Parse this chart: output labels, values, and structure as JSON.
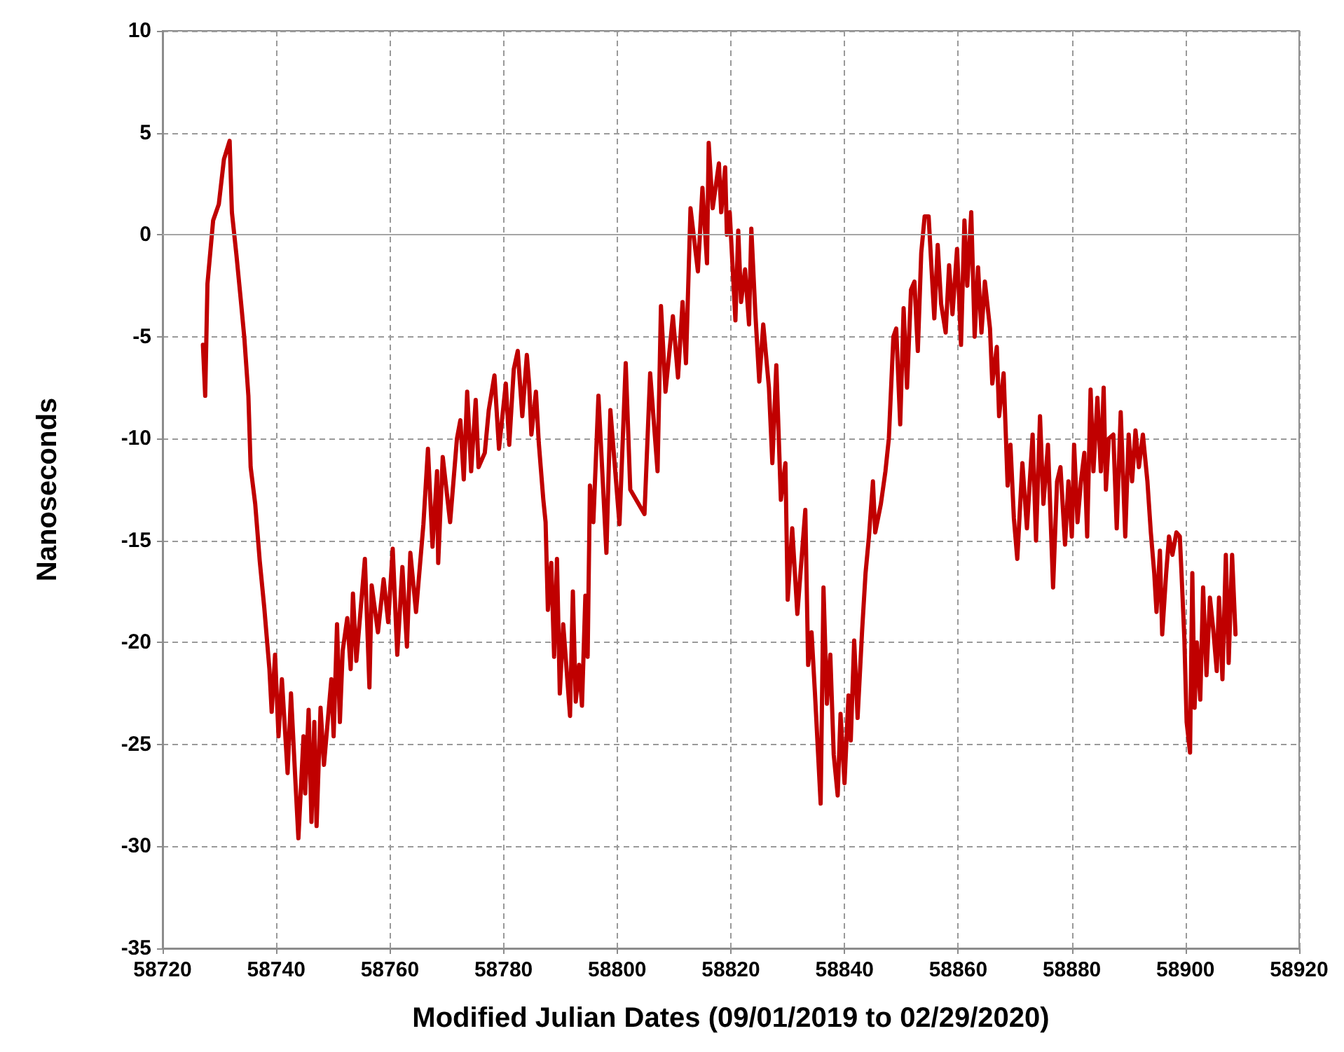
{
  "chart_data": {
    "type": "line",
    "xlabel": "Modified Julian Dates (09/01/2019 to 02/29/2020)",
    "ylabel": "Nanoseconds",
    "xlim": [
      58720,
      58920
    ],
    "xticks": [
      58720,
      58740,
      58760,
      58780,
      58800,
      58820,
      58840,
      58860,
      58880,
      58900,
      58920
    ],
    "ylim": [
      -35,
      10
    ],
    "yticks": [
      -35,
      -30,
      -25,
      -20,
      -15,
      -10,
      -5,
      0,
      5,
      10
    ],
    "grid": true,
    "ref_lines": [
      {
        "axis": "y",
        "value": 0,
        "color": "#a6a6a6",
        "line_style": "solid"
      }
    ],
    "series": [
      {
        "color": "#c00000",
        "x": [
          58727.1,
          58727.5,
          58727.9,
          58728.9,
          58729.9,
          58730.8,
          58731.8,
          58732.2,
          58733.0,
          58733.8,
          58734.4,
          58735.1,
          58735.5,
          58736.3,
          58737.1,
          58737.9,
          58738.8,
          58739.2,
          58739.8,
          58740.4,
          58741.0,
          58742.0,
          58742.6,
          58743.3,
          58743.9,
          58744.8,
          58745.1,
          58745.7,
          58746.2,
          58746.7,
          58747.1,
          58747.8,
          58748.4,
          58749.7,
          58750.1,
          58750.7,
          58751.2,
          58751.7,
          58752.5,
          58753.1,
          58753.5,
          58754.1,
          58755.6,
          58756.4,
          58756.8,
          58757.9,
          58758.9,
          58759.7,
          58760.5,
          58761.3,
          58762.2,
          58763.0,
          58763.6,
          58764.6,
          58765.9,
          58766.7,
          58767.5,
          58768.3,
          58768.5,
          58769.3,
          58770.6,
          58771.8,
          58772.4,
          58773.0,
          58773.6,
          58774.3,
          58775.1,
          58775.6,
          58776.7,
          58777.4,
          58778.4,
          58779.2,
          58780.4,
          58781.0,
          58781.8,
          58782.5,
          58783.3,
          58784.1,
          58784.5,
          58784.9,
          58785.7,
          58786.2,
          58787.0,
          58787.4,
          58787.8,
          58788.4,
          58788.9,
          58789.4,
          58789.9,
          58790.5,
          58791.7,
          58792.2,
          58792.7,
          58793.3,
          58793.8,
          58794.4,
          58794.8,
          58795.2,
          58795.8,
          58796.7,
          58798.1,
          58798.8,
          58800.4,
          58801.5,
          58802.3,
          58804.8,
          58805.8,
          58807.1,
          58807.7,
          58808.5,
          58809.8,
          58810.7,
          58811.5,
          58812.1,
          58812.9,
          58814.2,
          58815.0,
          58815.8,
          58816.1,
          58816.8,
          58817.9,
          58818.3,
          58819.0,
          58819.3,
          58819.8,
          58820.8,
          58821.3,
          58821.8,
          58822.5,
          58823.2,
          58823.6,
          58824.3,
          58825.0,
          58825.7,
          58826.7,
          58827.3,
          58828.0,
          58828.8,
          58829.6,
          58830.0,
          58830.8,
          58831.7,
          58833.1,
          58833.6,
          58834.2,
          58834.8,
          58835.8,
          58836.3,
          58836.9,
          58837.5,
          58838.1,
          58838.8,
          58839.3,
          58840.0,
          58840.7,
          58841.1,
          58841.7,
          58842.3,
          58843.1,
          58843.7,
          58844.3,
          58845.0,
          58845.4,
          58846.4,
          58847.2,
          58847.8,
          58848.6,
          58849.1,
          58849.8,
          58850.4,
          58851.0,
          58851.7,
          58852.3,
          58852.9,
          58853.5,
          58854.1,
          58854.8,
          58855.4,
          58855.8,
          58856.4,
          58857.0,
          58857.8,
          58858.4,
          58859.0,
          58859.8,
          58860.5,
          58861.1,
          58861.6,
          58862.3,
          58862.9,
          58863.5,
          58864.1,
          58864.7,
          58865.6,
          58866.0,
          58866.8,
          58867.2,
          58868.0,
          58868.7,
          58869.2,
          58869.8,
          58870.4,
          58871.3,
          58872.1,
          58873.1,
          58873.7,
          58874.4,
          58875.0,
          58875.8,
          58876.7,
          58877.4,
          58878.0,
          58878.8,
          58879.4,
          58880.0,
          58880.4,
          58881.0,
          58881.6,
          58882.2,
          58882.7,
          58883.3,
          58883.8,
          58884.5,
          58885.1,
          58885.6,
          58886.0,
          58886.5,
          58887.3,
          58887.9,
          58888.6,
          58889.4,
          58890.0,
          58890.6,
          58891.2,
          58891.8,
          58892.5,
          58893.3,
          58893.9,
          58894.5,
          58894.9,
          58895.5,
          58895.9,
          58896.6,
          58897.1,
          58897.7,
          58898.4,
          58899.0,
          58899.3,
          58899.8,
          58900.2,
          58900.8,
          58901.2,
          58901.6,
          58902.0,
          58902.6,
          58903.1,
          58903.7,
          58904.3,
          58904.9,
          58905.5,
          58905.9,
          58906.5,
          58907.1,
          58907.6,
          58908.2,
          58908.8
        ],
        "values": [
          -5.4,
          -7.9,
          -2.4,
          0.7,
          1.5,
          3.7,
          4.6,
          1.1,
          -1.0,
          -3.3,
          -5.1,
          -7.9,
          -11.4,
          -13.2,
          -16.0,
          -18.3,
          -21.3,
          -23.4,
          -20.6,
          -24.6,
          -21.8,
          -26.4,
          -22.5,
          -26.4,
          -29.6,
          -24.6,
          -27.4,
          -23.3,
          -28.8,
          -23.9,
          -29.0,
          -23.2,
          -26.0,
          -21.8,
          -24.6,
          -19.1,
          -23.9,
          -20.4,
          -18.8,
          -21.3,
          -17.6,
          -20.9,
          -15.9,
          -22.2,
          -17.2,
          -19.5,
          -16.9,
          -19.0,
          -15.4,
          -20.6,
          -16.3,
          -20.2,
          -15.6,
          -18.5,
          -14.2,
          -10.5,
          -15.3,
          -11.6,
          -16.1,
          -10.9,
          -14.1,
          -10.0,
          -9.1,
          -12.0,
          -7.7,
          -11.6,
          -8.1,
          -11.4,
          -10.7,
          -8.6,
          -6.9,
          -10.5,
          -7.3,
          -10.3,
          -6.6,
          -5.7,
          -8.9,
          -5.9,
          -7.3,
          -9.8,
          -7.7,
          -10.2,
          -13.0,
          -14.1,
          -18.4,
          -16.1,
          -20.7,
          -15.9,
          -22.5,
          -19.1,
          -23.6,
          -17.5,
          -22.9,
          -21.1,
          -23.1,
          -17.7,
          -20.7,
          -12.3,
          -14.1,
          -7.9,
          -15.6,
          -8.6,
          -14.2,
          -6.3,
          -12.5,
          -13.7,
          -6.8,
          -11.6,
          -3.5,
          -7.7,
          -4.0,
          -7.0,
          -3.3,
          -6.3,
          1.3,
          -1.8,
          2.3,
          -1.4,
          4.5,
          1.3,
          3.5,
          1.1,
          3.3,
          0.0,
          1.1,
          -4.2,
          0.2,
          -3.3,
          -1.7,
          -4.4,
          0.3,
          -3.8,
          -7.2,
          -4.4,
          -7.5,
          -11.2,
          -6.4,
          -13.0,
          -11.2,
          -17.9,
          -14.4,
          -18.6,
          -13.5,
          -21.1,
          -19.5,
          -22.5,
          -27.9,
          -17.3,
          -23.0,
          -20.6,
          -25.5,
          -27.5,
          -23.5,
          -26.9,
          -22.6,
          -24.8,
          -19.9,
          -23.7,
          -19.4,
          -16.6,
          -14.8,
          -12.1,
          -14.6,
          -13.2,
          -11.6,
          -10.0,
          -5.0,
          -4.6,
          -9.3,
          -3.6,
          -7.5,
          -2.7,
          -2.3,
          -5.7,
          -0.9,
          0.9,
          0.9,
          -2.1,
          -4.1,
          -0.5,
          -3.4,
          -4.8,
          -1.5,
          -3.9,
          -0.7,
          -5.4,
          0.7,
          -2.5,
          1.1,
          -5.0,
          -1.6,
          -4.8,
          -2.3,
          -4.6,
          -7.3,
          -5.5,
          -8.9,
          -6.8,
          -12.3,
          -10.3,
          -13.9,
          -15.9,
          -11.2,
          -14.4,
          -9.8,
          -15.0,
          -8.9,
          -13.2,
          -10.3,
          -17.3,
          -12.1,
          -11.4,
          -15.2,
          -12.1,
          -14.8,
          -10.3,
          -14.1,
          -12.1,
          -10.7,
          -14.8,
          -7.6,
          -11.6,
          -8.0,
          -11.6,
          -7.5,
          -12.5,
          -10.0,
          -9.8,
          -14.4,
          -8.7,
          -14.8,
          -9.8,
          -12.1,
          -9.6,
          -11.4,
          -9.8,
          -12.1,
          -14.6,
          -16.6,
          -18.5,
          -15.5,
          -19.6,
          -16.6,
          -14.8,
          -15.7,
          -14.6,
          -14.8,
          -16.6,
          -19.8,
          -23.9,
          -25.4,
          -16.6,
          -23.2,
          -20.0,
          -22.8,
          -17.3,
          -21.6,
          -17.8,
          -19.4,
          -21.4,
          -17.8,
          -21.8,
          -15.7,
          -21.0,
          -15.7,
          -19.6
        ]
      }
    ]
  }
}
